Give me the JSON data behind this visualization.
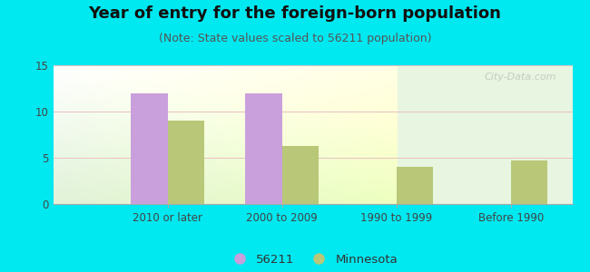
{
  "title": "Year of entry for the foreign-born population",
  "subtitle": "(Note: State values scaled to 56211 population)",
  "categories": [
    "2010 or later",
    "2000 to 2009",
    "1990 to 1999",
    "Before 1990"
  ],
  "values_56211": [
    12,
    12,
    0,
    0
  ],
  "values_minnesota": [
    9.0,
    6.3,
    4.0,
    4.7
  ],
  "bar_color_56211": "#c9a0dc",
  "bar_color_minnesota": "#b8c878",
  "background_outer": "#00e8f0",
  "background_inner_top": "#ffffff",
  "background_inner_bottom": "#d8eedd",
  "ylim": [
    0,
    15
  ],
  "yticks": [
    0,
    5,
    10,
    15
  ],
  "bar_width": 0.32,
  "legend_label_56211": "56211",
  "legend_label_minnesota": "Minnesota",
  "title_fontsize": 13,
  "subtitle_fontsize": 9,
  "watermark": "City-Data.com",
  "grid_color": "#e8c0c0",
  "tick_color": "#444444",
  "title_color": "#111111",
  "subtitle_color": "#555555"
}
